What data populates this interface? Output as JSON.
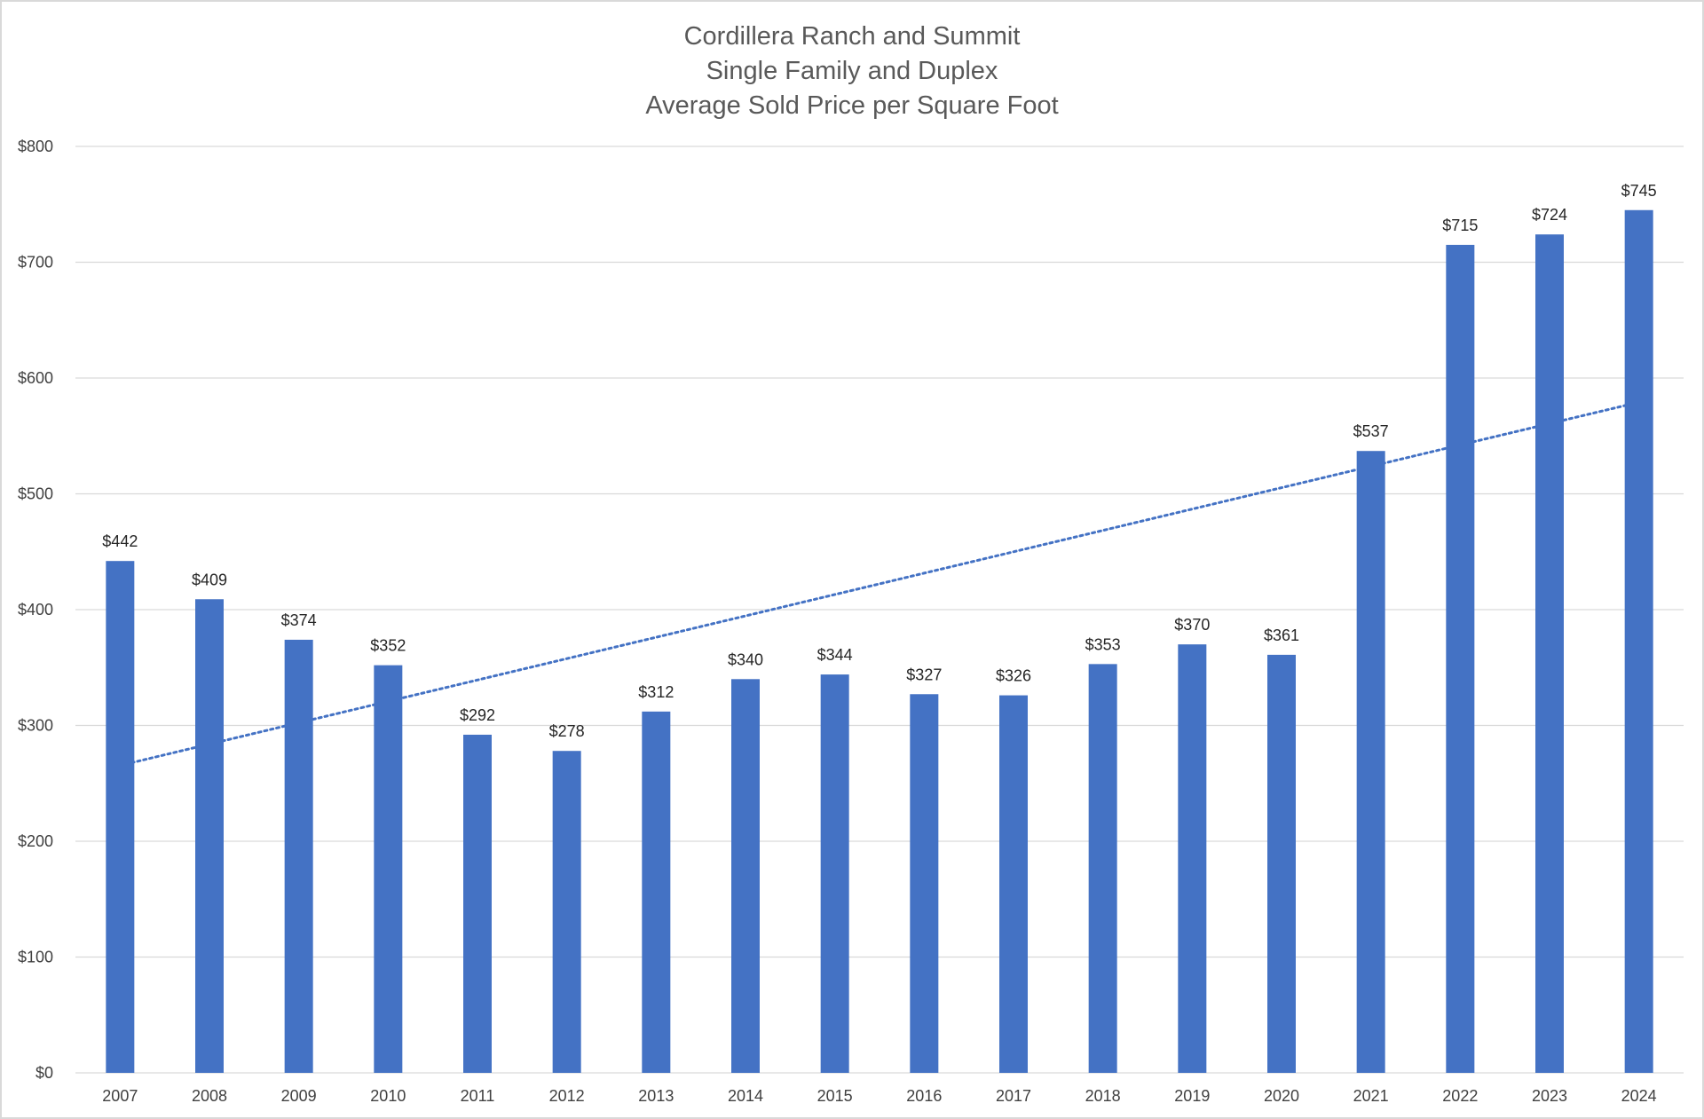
{
  "chart_data": {
    "type": "bar",
    "title": [
      "Cordillera Ranch and Summit",
      "Single Family and Duplex",
      "Average Sold Price per Square Foot"
    ],
    "xlabel": "",
    "ylabel": "",
    "categories": [
      "2007",
      "2008",
      "2009",
      "2010",
      "2011",
      "2012",
      "2013",
      "2014",
      "2015",
      "2016",
      "2017",
      "2018",
      "2019",
      "2020",
      "2021",
      "2022",
      "2023",
      "2024"
    ],
    "values": [
      442,
      409,
      374,
      352,
      292,
      278,
      312,
      340,
      344,
      327,
      326,
      353,
      370,
      361,
      537,
      715,
      724,
      745
    ],
    "data_labels": [
      "$442",
      "$409",
      "$374",
      "$352",
      "$292",
      "$278",
      "$312",
      "$340",
      "$344",
      "$327",
      "$326",
      "$353",
      "$370",
      "$361",
      "$537",
      "$715",
      "$724",
      "$745"
    ],
    "y_ticks": [
      0,
      100,
      200,
      300,
      400,
      500,
      600,
      700,
      800
    ],
    "y_tick_labels": [
      "$0",
      "$100",
      "$200",
      "$300",
      "$400",
      "$500",
      "$600",
      "$700",
      "$800"
    ],
    "ylim": [
      0,
      800
    ],
    "grid": true,
    "legend": "none",
    "trendline": {
      "type": "linear",
      "style": "dotted"
    },
    "colors": {
      "bar": "#4472c4",
      "trendline": "#4472c4",
      "grid": "#d9d9d9",
      "title": "#595959"
    }
  }
}
